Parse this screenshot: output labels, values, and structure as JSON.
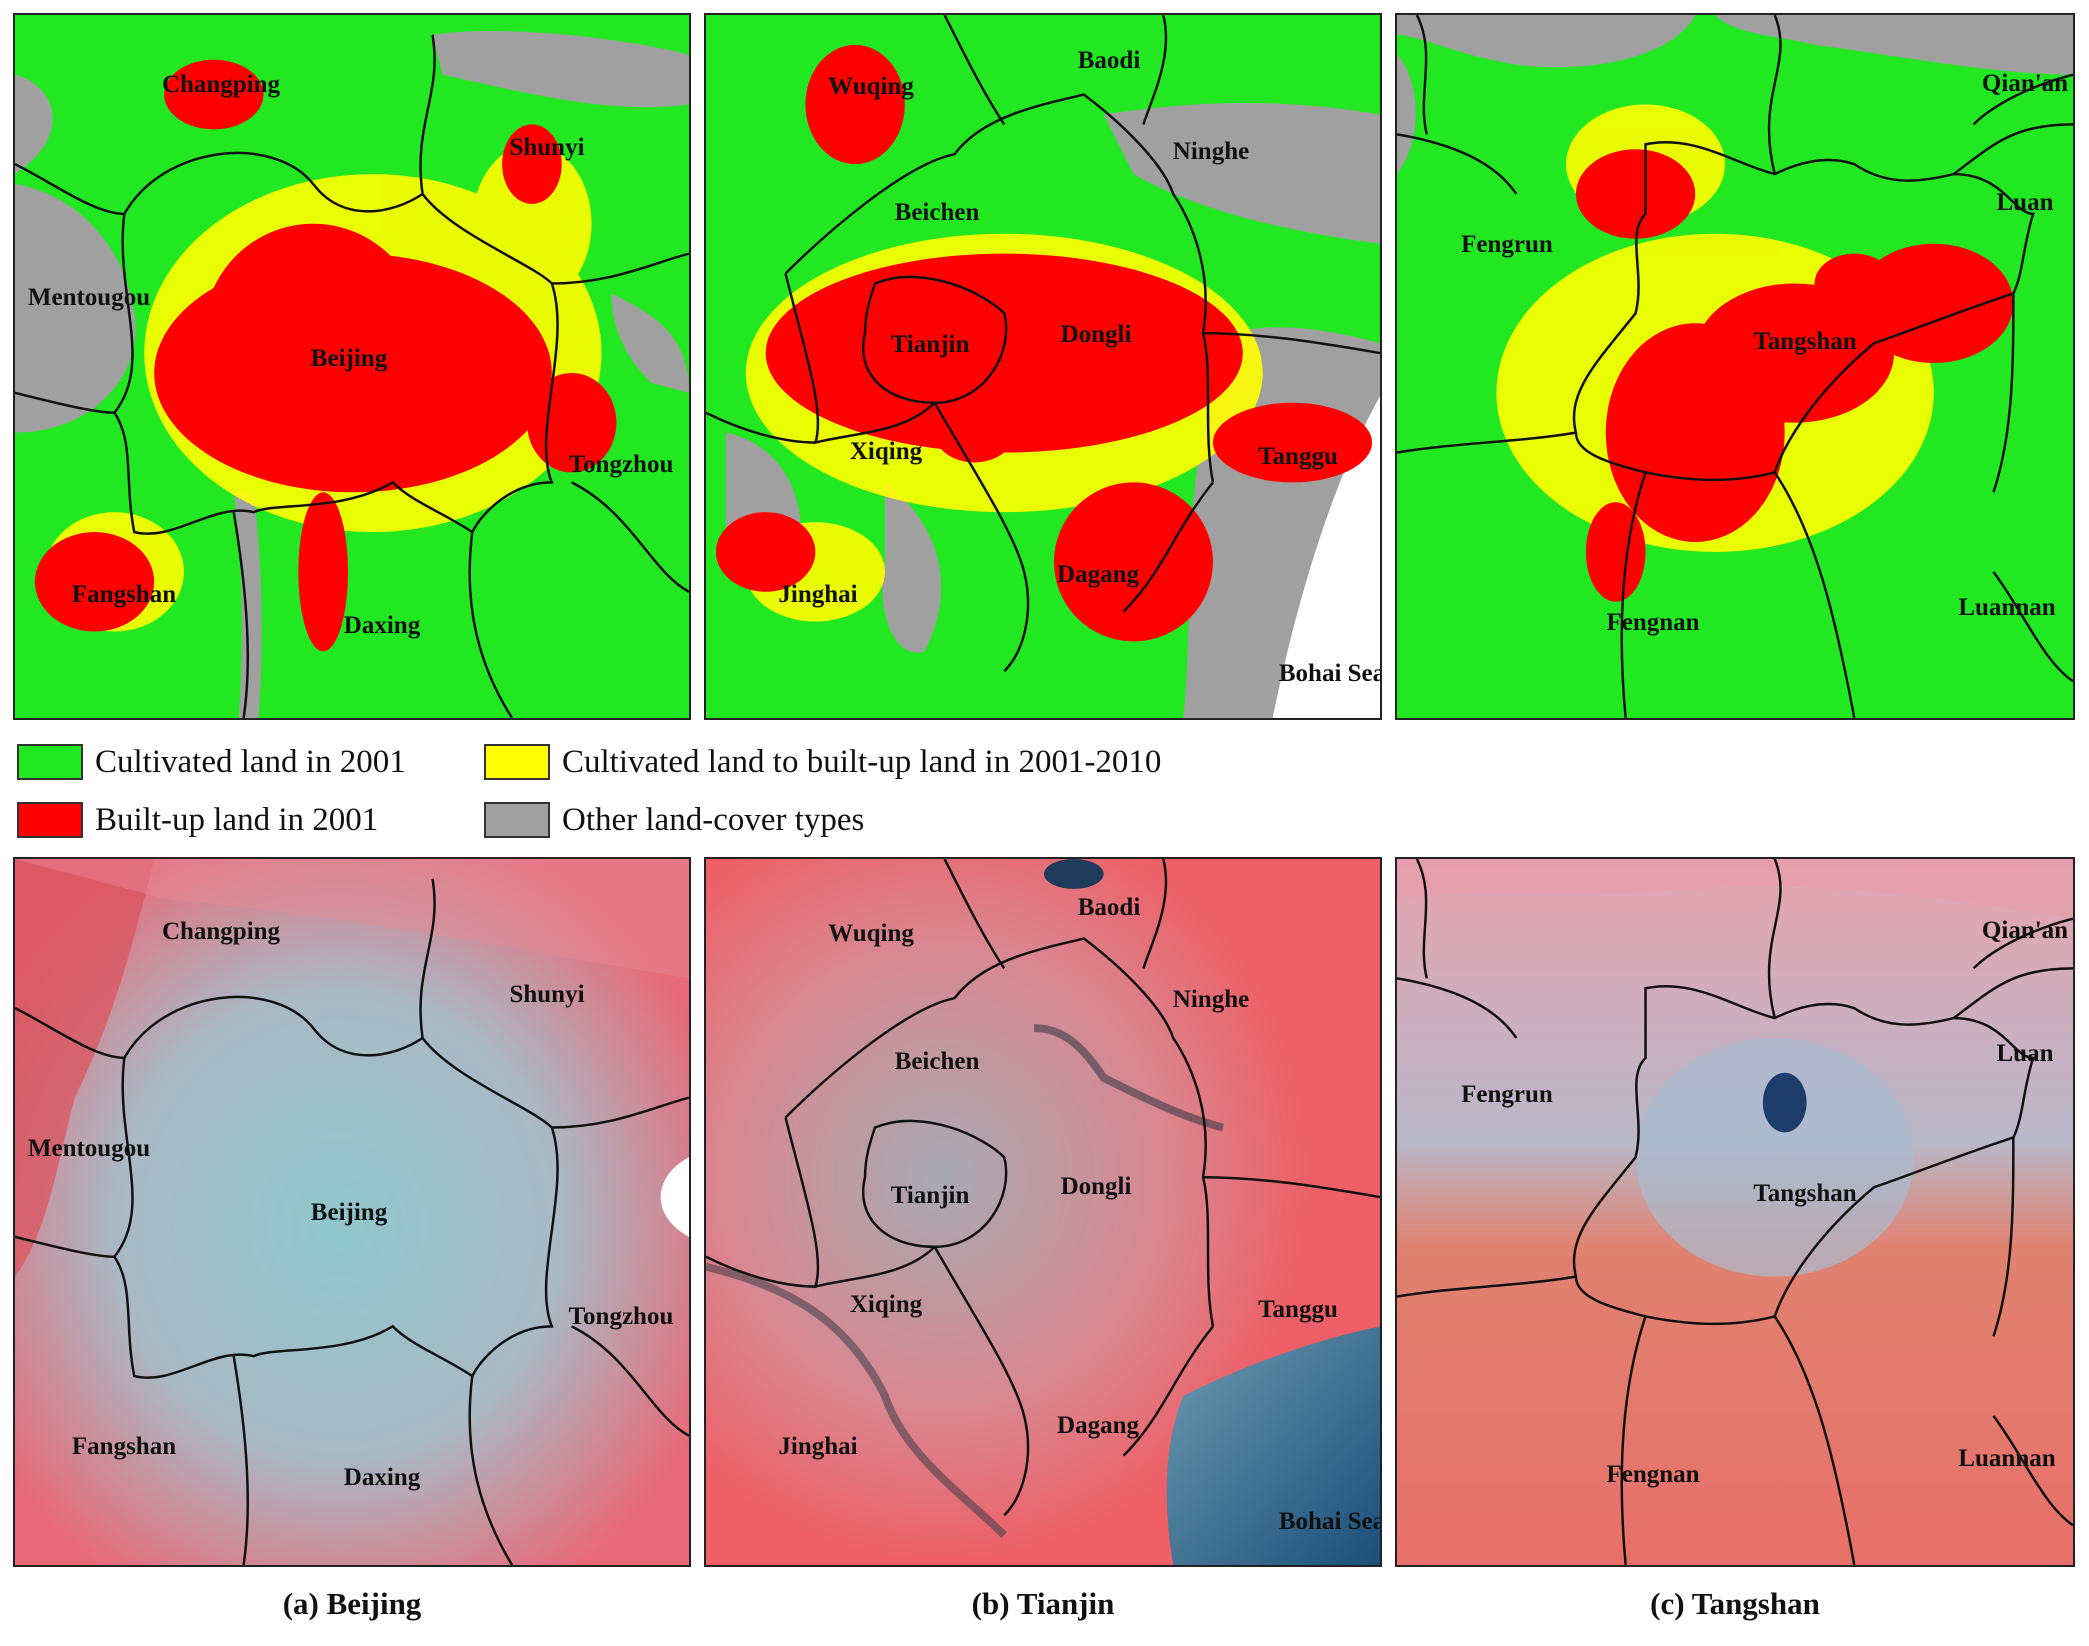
{
  "legend": {
    "items": [
      {
        "label": "Cultivated land in 2001",
        "color": "#22e822"
      },
      {
        "label": "Cultivated land to built-up land in 2001-2010",
        "color": "#ffff00"
      },
      {
        "label": "Built-up land in 2001",
        "color": "#ff0000"
      },
      {
        "label": "Other land-cover types",
        "color": "#a0a0a0"
      }
    ]
  },
  "colors": {
    "cultivated": "#22e822",
    "converted": "#ffff00",
    "builtup": "#ff0000",
    "other": "#a0a0a0",
    "sea": "#ffffff",
    "false_color_red": "#e86a78",
    "false_color_urban": "#8fc7cc",
    "boundary": "#111111"
  },
  "panels": [
    {
      "caption": "(a) Beijing",
      "places": [
        "Changping",
        "Shunyi",
        "Mentougou",
        "Beijing",
        "Tongzhou",
        "Fangshan",
        "Daxing"
      ]
    },
    {
      "caption": "(b) Tianjin",
      "places": [
        "Wuqing",
        "Baodi",
        "Ninghe",
        "Beichen",
        "Tianjin",
        "Dongli",
        "Xiqing",
        "Tanggu",
        "Jinghai",
        "Dagang",
        "Bohai Sea"
      ]
    },
    {
      "caption": "(c) Tangshan",
      "places": [
        "Qian'an",
        "Luan",
        "Fengrun",
        "Tangshan",
        "Fengnan",
        "Luannan"
      ]
    }
  ]
}
